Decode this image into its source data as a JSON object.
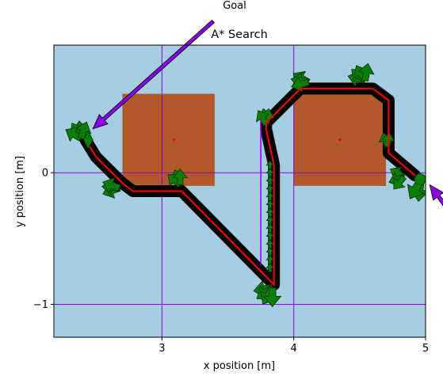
{
  "chart_data": {
    "type": "line",
    "title": "A* Search",
    "xlabel": "x position [m]",
    "ylabel": "y position [m]",
    "xlim": [
      2.18,
      5.0
    ],
    "ylim": [
      -1.25,
      0.97
    ],
    "xticks": [
      3,
      4,
      5
    ],
    "xtick_labels": [
      "3",
      "4",
      "5"
    ],
    "yticks": [
      0,
      -1
    ],
    "ytick_labels": [
      "0",
      "−1"
    ],
    "grid": false,
    "reference_lines": {
      "x": [
        3,
        4
      ],
      "y": [
        0,
        -1
      ]
    },
    "obstacles": [
      {
        "x0": 2.7,
        "x1": 3.4,
        "y0": -0.1,
        "y1": 0.6,
        "center": [
          3.09,
          0.25
        ]
      },
      {
        "x0": 4.0,
        "x1": 4.7,
        "y0": -0.1,
        "y1": 0.6,
        "center": [
          4.35,
          0.25
        ]
      }
    ],
    "path": {
      "x": [
        2.42,
        2.5,
        2.7,
        2.78,
        3.15,
        3.85,
        3.85,
        3.79,
        3.79,
        4.05,
        4.6,
        4.72,
        4.72,
        4.92
      ],
      "y": [
        0.25,
        0.12,
        -0.08,
        -0.14,
        -0.14,
        -0.85,
        0.06,
        0.33,
        0.38,
        0.64,
        0.64,
        0.55,
        0.15,
        -0.02
      ]
    },
    "start": {
      "x": 4.96,
      "y": -0.05
    },
    "goal": {
      "x": 2.44,
      "y": 0.25
    },
    "annotation": {
      "text": "Goal"
    },
    "colors": {
      "background": "#a6cee3",
      "obstacle": "#b15928",
      "path": "#ff0000",
      "trail": "#000000",
      "reference_lines": "#8a00e6",
      "pose_arrows": "#0a7d0a",
      "annotation_arrow": "#8a00e6"
    }
  }
}
